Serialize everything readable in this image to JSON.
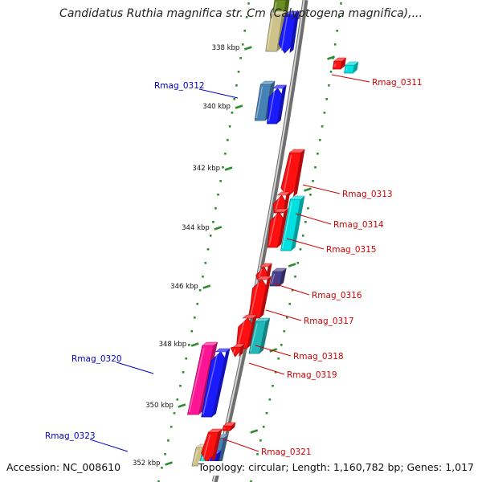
{
  "title": "Candidatus Ruthia magnifica str. Cm (Calyptogena magnifica),...",
  "footer": {
    "accession": "Accession: NC_008610",
    "topology": "Topology: circular; Length: 1,160,782 bp; Genes: 1,017"
  },
  "colors": {
    "backbone": "#8c8c8c",
    "ring": "#2e8b2e",
    "forward_label": "#0000c8",
    "reverse_label": "#d40000",
    "red": "#ff1010",
    "blue": "#1a1aff",
    "cyan": "#00e0e0",
    "teal": "#20b8b8",
    "steelblue": "#4682b4",
    "magenta": "#ff1493",
    "khaki": "#cdc38a",
    "darkslate": "#483d8b",
    "olive": "#6b8e23"
  },
  "axis_labels": [
    "338 kbp",
    "340 kbp",
    "342 kbp",
    "344 kbp",
    "346 kbp",
    "348 kbp",
    "350 kbp",
    "352 kbp"
  ],
  "gene_labels": {
    "forward": [
      "Rmag_0312",
      "Rmag_0320",
      "Rmag_0323"
    ],
    "reverse": [
      "Rmag_0311",
      "Rmag_0313",
      "Rmag_0314",
      "Rmag_0315",
      "Rmag_0316",
      "Rmag_0317",
      "Rmag_0318",
      "Rmag_0319",
      "Rmag_0321"
    ]
  }
}
